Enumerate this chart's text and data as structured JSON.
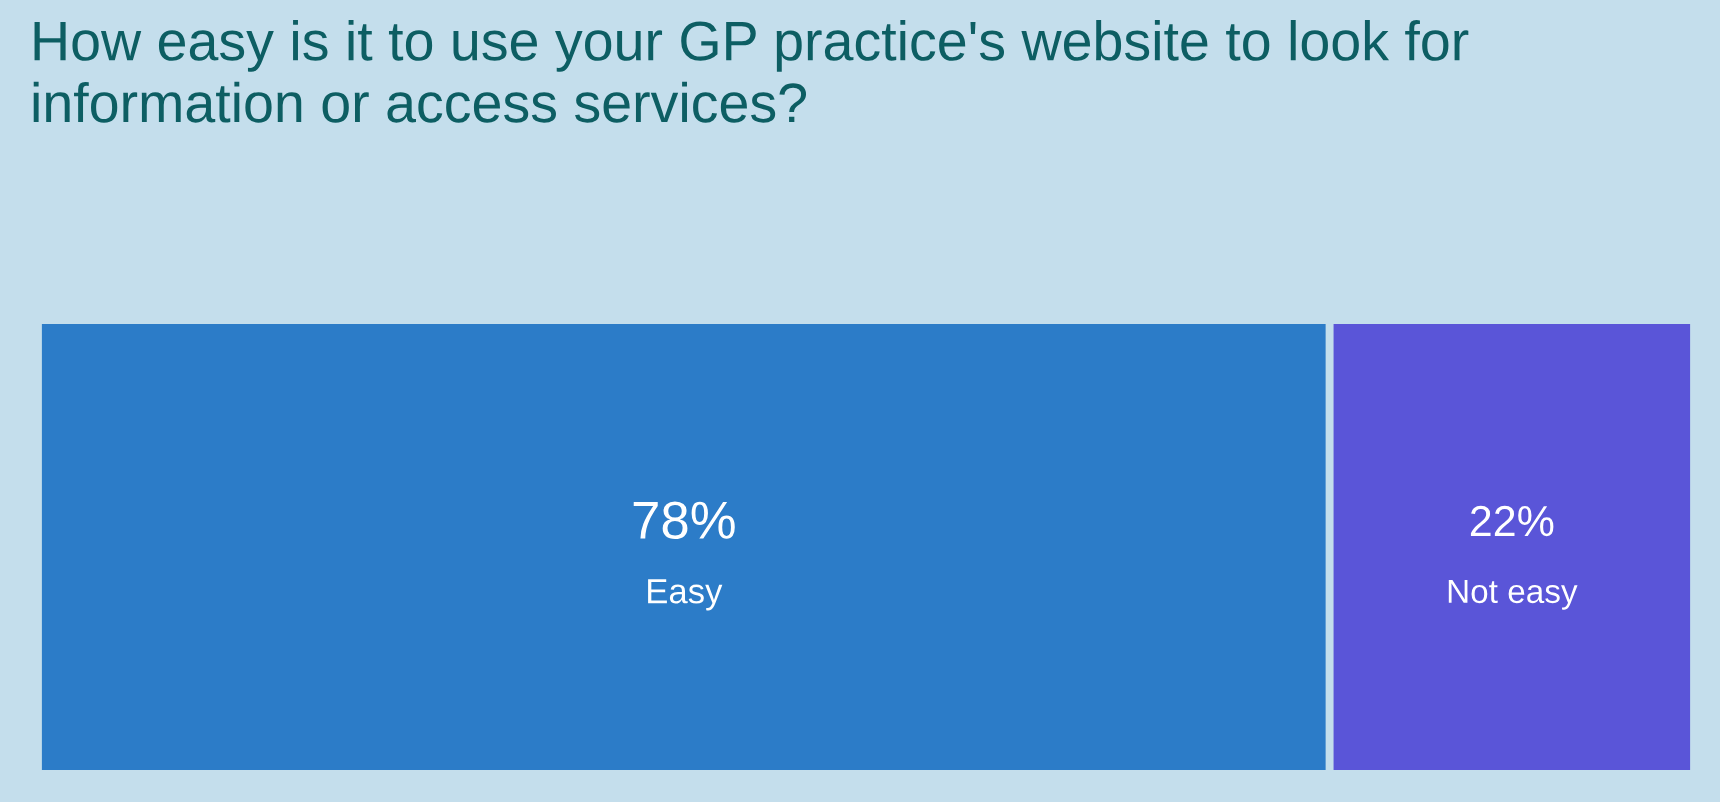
{
  "chart_data": {
    "type": "bar",
    "orientation": "horizontal",
    "stacked": true,
    "title": "How easy is it to use your GP practice's website to look for information or access services?",
    "categories": [
      null
    ],
    "series": [
      {
        "name": "Easy",
        "color": "#2c7cc8",
        "values": [
          78
        ],
        "value_labels": [
          "78%"
        ]
      },
      {
        "name": "Not easy",
        "color": "#5a55d8",
        "values": [
          22
        ],
        "value_labels": [
          "22%"
        ]
      }
    ],
    "xlim": [
      0,
      100
    ],
    "tick_labels": false,
    "grid": false,
    "legend": false
  }
}
